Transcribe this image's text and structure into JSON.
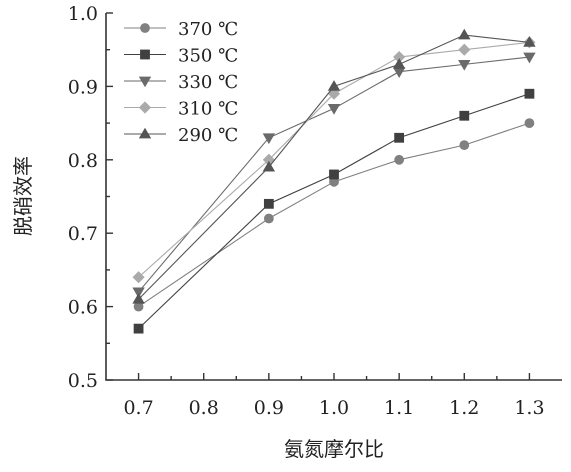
{
  "chart_data": {
    "type": "line",
    "xlabel": "氨氮摩尔比",
    "ylabel": "脱硝效率",
    "x_ticks": [
      "0.7",
      "0.8",
      "0.9",
      "1.0",
      "1.1",
      "1.2",
      "1.3"
    ],
    "y_ticks": [
      "0.5",
      "0.6",
      "0.7",
      "0.8",
      "0.9",
      "1.0"
    ],
    "xlim": [
      0.65,
      1.35
    ],
    "ylim": [
      0.5,
      1.0
    ],
    "grid": false,
    "legend_position": "top-left",
    "x": [
      0.7,
      0.9,
      1.0,
      1.1,
      1.2,
      1.3
    ],
    "series": [
      {
        "name": "370 ℃",
        "marker": "circle",
        "color": "#808080",
        "values": [
          0.6,
          0.72,
          0.77,
          0.8,
          0.82,
          0.85
        ]
      },
      {
        "name": "350 ℃",
        "marker": "square",
        "color": "#404040",
        "values": [
          0.57,
          0.74,
          0.78,
          0.83,
          0.86,
          0.89
        ]
      },
      {
        "name": "330 ℃",
        "marker": "triangle-down",
        "color": "#6a6a6a",
        "values": [
          0.62,
          0.83,
          0.87,
          0.92,
          0.93,
          0.94
        ]
      },
      {
        "name": "310 ℃",
        "marker": "diamond",
        "color": "#aaaaaa",
        "values": [
          0.64,
          0.8,
          0.89,
          0.94,
          0.95,
          0.96
        ]
      },
      {
        "name": "290 ℃",
        "marker": "triangle-up",
        "color": "#555555",
        "values": [
          0.61,
          0.79,
          0.9,
          0.93,
          0.97,
          0.96
        ]
      }
    ]
  }
}
